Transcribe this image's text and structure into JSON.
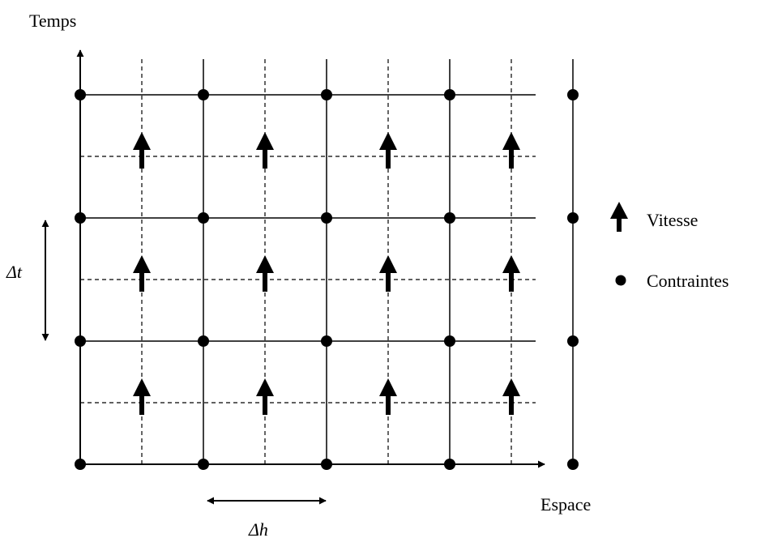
{
  "labels": {
    "time_axis": "Temps",
    "space_axis": "Espace",
    "delta_t": "Δt",
    "delta_h": "Δh"
  },
  "legend": {
    "velocity": "Vitesse",
    "stress": "Contraintes"
  },
  "grid": {
    "space_nodes": 5,
    "time_nodes": 4,
    "velocity_columns": 4,
    "velocity_rows": 3
  },
  "colors": {
    "ink": "#000000",
    "background": "#ffffff"
  },
  "icons": {
    "velocity": "up-arrow-icon",
    "stress": "dot-icon"
  }
}
